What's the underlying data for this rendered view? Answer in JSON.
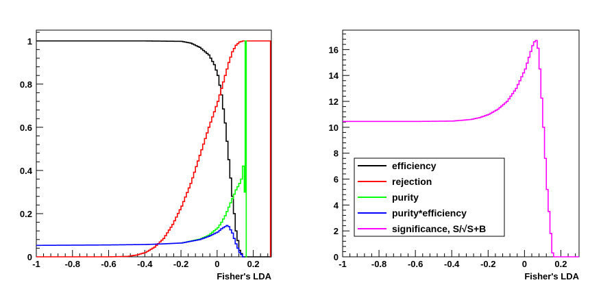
{
  "chart_data": [
    {
      "type": "line",
      "xlabel": "Fisher's LDA",
      "ylabel": "",
      "xlim": [
        -1,
        0.3
      ],
      "ylim": [
        0,
        1.05
      ],
      "x_ticks": [
        "-1",
        "-0.8",
        "-0.6",
        "-0.4",
        "-0.2",
        "0",
        "0.2"
      ],
      "y_ticks": [
        "0",
        "0.2",
        "0.4",
        "0.6",
        "0.8",
        "1"
      ],
      "grid": false,
      "series": [
        {
          "name": "efficiency",
          "color": "#000000",
          "x": [
            -1.0,
            -0.4,
            -0.2,
            -0.15,
            -0.1,
            -0.05,
            -0.02,
            0.0,
            0.02,
            0.04,
            0.06,
            0.08,
            0.1,
            0.12,
            0.14,
            0.15,
            0.3
          ],
          "y": [
            1.0,
            1.0,
            0.998,
            0.99,
            0.97,
            0.935,
            0.89,
            0.84,
            0.75,
            0.62,
            0.45,
            0.28,
            0.12,
            0.03,
            0.0,
            0.0,
            0.0
          ]
        },
        {
          "name": "rejection",
          "color": "#ff0000",
          "x": [
            -1.0,
            -0.6,
            -0.5,
            -0.45,
            -0.4,
            -0.35,
            -0.3,
            -0.25,
            -0.2,
            -0.15,
            -0.1,
            -0.05,
            0.0,
            0.02,
            0.04,
            0.06,
            0.08,
            0.1,
            0.12,
            0.14,
            0.16,
            0.29,
            0.295
          ],
          "y": [
            0.0,
            0.0,
            0.002,
            0.008,
            0.02,
            0.045,
            0.085,
            0.15,
            0.235,
            0.34,
            0.47,
            0.6,
            0.72,
            0.78,
            0.84,
            0.9,
            0.95,
            0.98,
            0.995,
            1.0,
            1.0,
            1.0,
            0.0
          ]
        },
        {
          "name": "purity",
          "color": "#00ff00",
          "x": [
            -0.2,
            -0.1,
            -0.05,
            0.0,
            0.02,
            0.04,
            0.06,
            0.08,
            0.1,
            0.12,
            0.13,
            0.14,
            0.15,
            0.155,
            0.16,
            0.161,
            0.165
          ],
          "y": [
            0.064,
            0.082,
            0.1,
            0.135,
            0.16,
            0.19,
            0.23,
            0.27,
            0.31,
            0.34,
            0.36,
            0.42,
            0.3,
            1.0,
            1.0,
            0.0,
            0.0
          ]
        },
        {
          "name": "purity*efficiency",
          "color": "#0000ff",
          "x": [
            -1.0,
            -0.6,
            -0.4,
            -0.3,
            -0.2,
            -0.1,
            -0.05,
            0.0,
            0.02,
            0.04,
            0.05,
            0.06,
            0.08,
            0.1,
            0.12,
            0.14,
            0.15
          ],
          "y": [
            0.053,
            0.055,
            0.057,
            0.06,
            0.064,
            0.08,
            0.095,
            0.115,
            0.13,
            0.14,
            0.145,
            0.14,
            0.11,
            0.06,
            0.02,
            0.0,
            0.0
          ]
        }
      ]
    },
    {
      "type": "line",
      "xlabel": "Fisher's LDA",
      "ylabel": "",
      "xlim": [
        -1,
        0.3
      ],
      "ylim": [
        0,
        17.5
      ],
      "x_ticks": [
        "-1",
        "-0.8",
        "-0.6",
        "-0.4",
        "-0.2",
        "0",
        "0.2"
      ],
      "y_ticks": [
        "0",
        "2",
        "4",
        "6",
        "8",
        "10",
        "12",
        "14",
        "16"
      ],
      "grid": false,
      "series": [
        {
          "name": "significance, S/√S+B",
          "color": "#ff00ff",
          "x": [
            -1.0,
            -0.6,
            -0.4,
            -0.3,
            -0.25,
            -0.2,
            -0.15,
            -0.1,
            -0.05,
            0.0,
            0.02,
            0.04,
            0.05,
            0.06,
            0.07,
            0.08,
            0.1,
            0.12,
            0.14,
            0.15,
            0.16,
            0.3
          ],
          "y": [
            10.45,
            10.45,
            10.48,
            10.6,
            10.75,
            11.0,
            11.4,
            12.0,
            13.0,
            14.5,
            15.4,
            16.3,
            16.6,
            16.7,
            16.1,
            14.5,
            10.0,
            5.2,
            1.8,
            0.3,
            0.0,
            0.0
          ]
        }
      ],
      "legend": {
        "placement": "bottom-left",
        "entries": [
          {
            "label": "efficiency",
            "color": "#000000"
          },
          {
            "label": "rejection",
            "color": "#ff0000"
          },
          {
            "label": "purity",
            "color": "#00ff00"
          },
          {
            "label": "purity*efficiency",
            "color": "#0000ff"
          },
          {
            "label": "significance, S/√S+B",
            "color": "#ff00ff"
          }
        ]
      }
    }
  ]
}
